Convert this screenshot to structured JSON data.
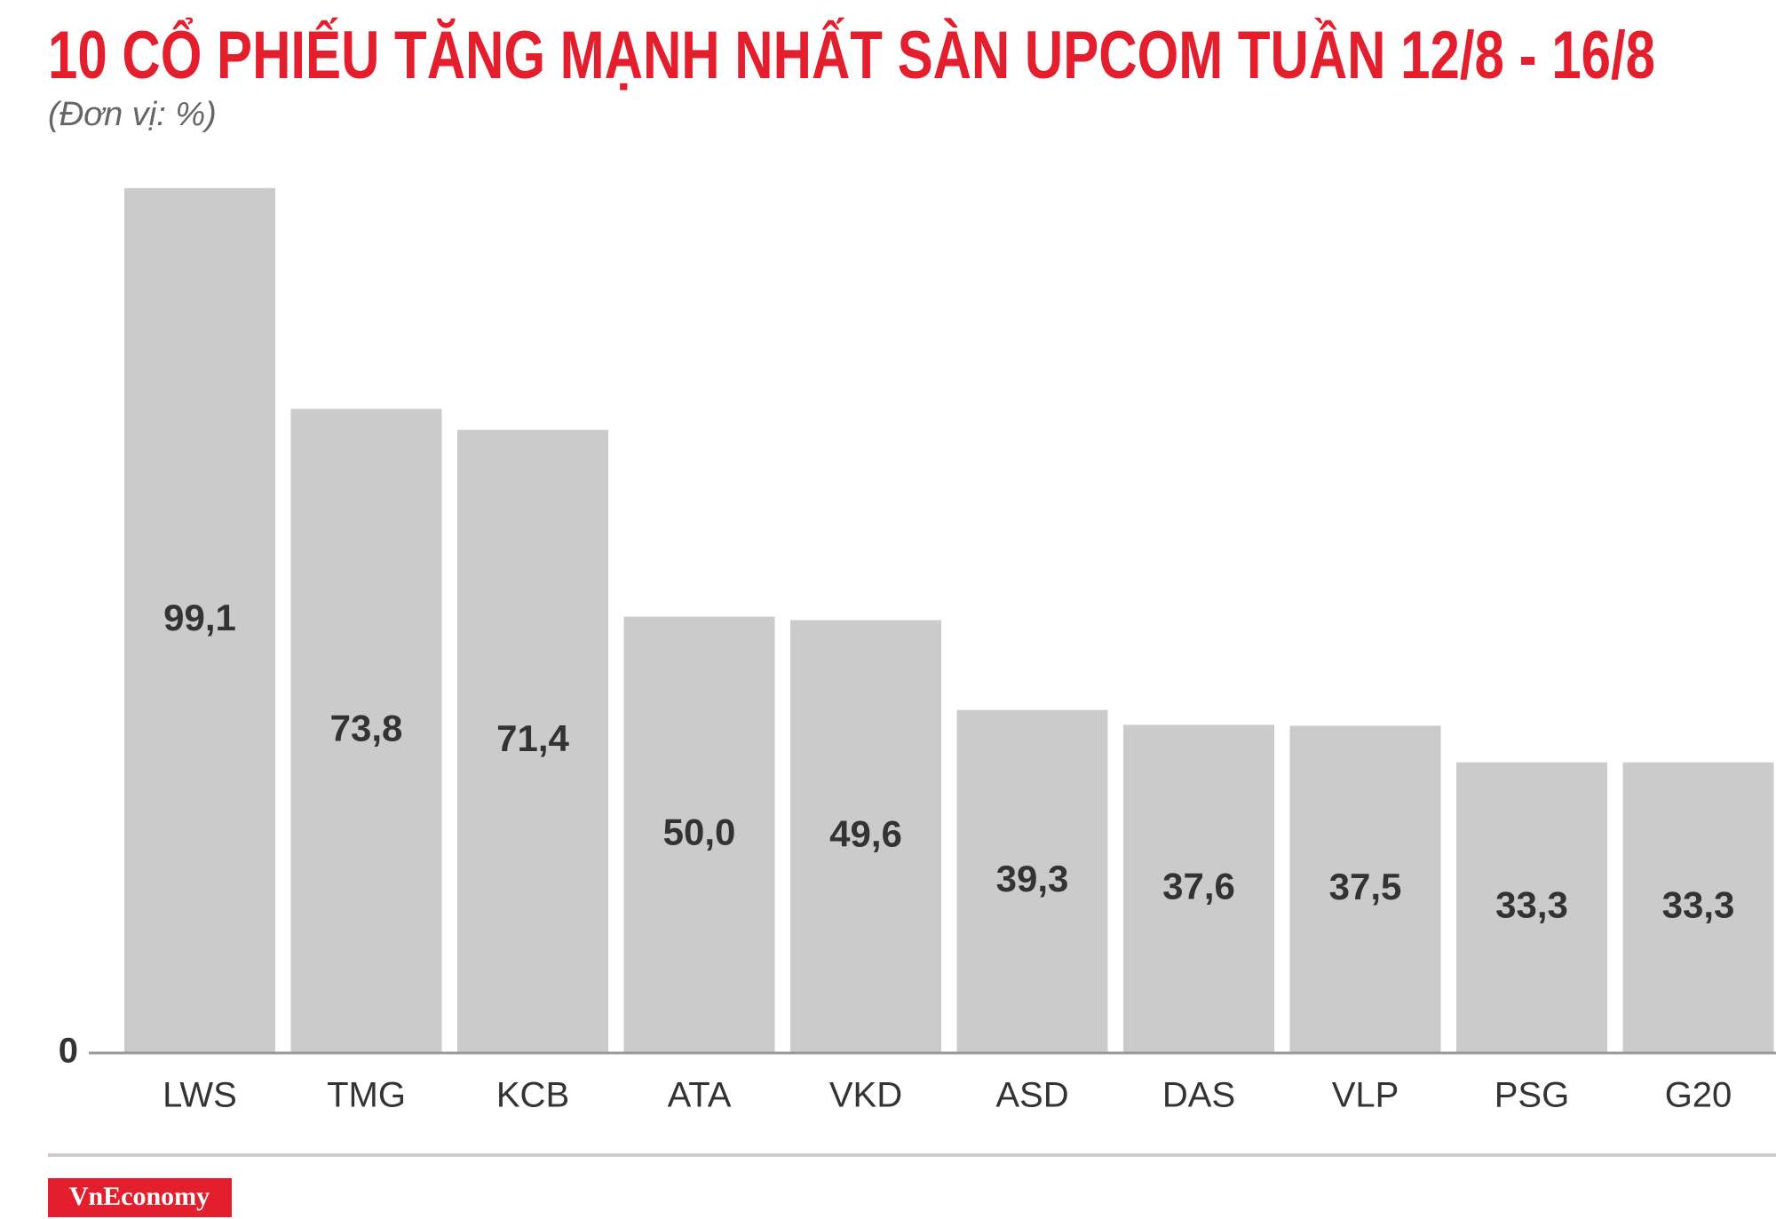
{
  "chart_data": {
    "type": "bar",
    "title": "10 CỔ PHIẾU TĂNG MẠNH NHẤT SÀN UPCOM TUẦN 12/8 - 16/8",
    "subtitle": "(Đơn vị: %)",
    "categories": [
      "LWS",
      "TMG",
      "KCB",
      "ATA",
      "VKD",
      "ASD",
      "DAS",
      "VLP",
      "PSG",
      "G20"
    ],
    "values": [
      99.1,
      73.8,
      71.4,
      50.0,
      49.6,
      39.3,
      37.6,
      37.5,
      33.3,
      33.3
    ],
    "value_labels": [
      "99,1",
      "73,8",
      "71,4",
      "50,0",
      "49,6",
      "39,3",
      "37,6",
      "37,5",
      "33,3",
      "33,3"
    ],
    "color": "#cccbcb",
    "ylim": [
      0,
      100
    ],
    "yticks": [
      0
    ],
    "source": "VnEconomy"
  }
}
